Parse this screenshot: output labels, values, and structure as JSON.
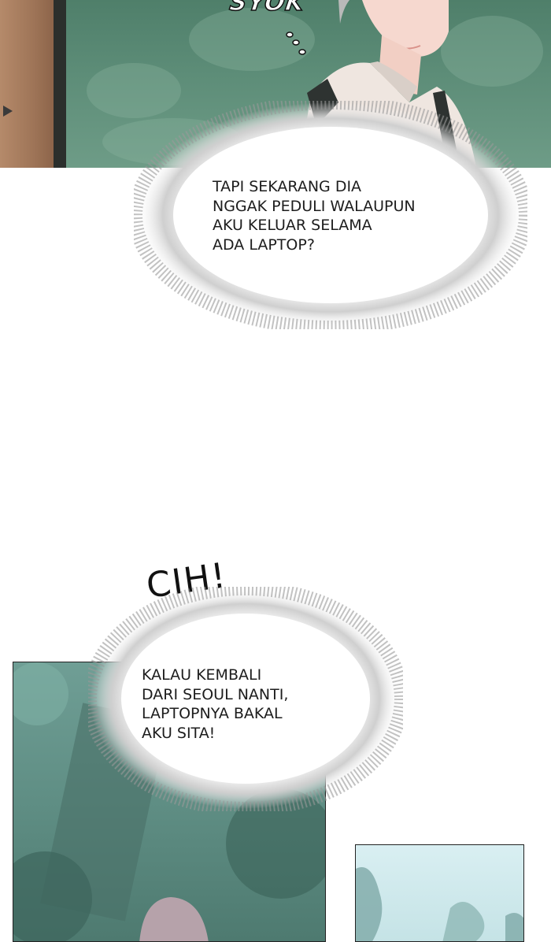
{
  "sound_effects": {
    "syok": "SYOK",
    "cih": "CIH!"
  },
  "speech_bubbles": [
    {
      "lines": [
        "TAPI SEKARANG DIA",
        "NGGAK PEDULI WALAUPUN",
        "AKU KELUAR SELAMA",
        "ADA LAPTOP?"
      ]
    },
    {
      "lines": [
        "KALAU KEMBALI",
        "DARI SEOUL NANTI,",
        "LAPTOPNYA BAKAL",
        "AKU SITA!"
      ]
    }
  ],
  "colors": {
    "foliage": "#5d8d78",
    "door": "#9e7457",
    "sky": "#d9eff2",
    "text": "#1d1d1d"
  }
}
